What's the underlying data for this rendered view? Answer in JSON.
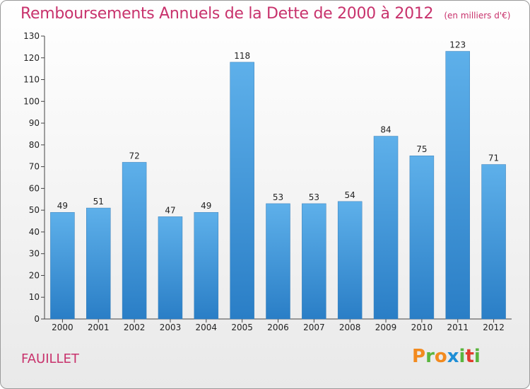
{
  "header": {
    "title": "Remboursements Annuels de la Dette de 2000 à 2012",
    "unit": "(en milliers d'€)"
  },
  "footer": {
    "commune": "FAUILLET",
    "logo": [
      "P",
      "r",
      "o",
      "x",
      "i",
      "t",
      "i"
    ]
  },
  "colors": {
    "title": "#c8326c",
    "bar": "#3a8fd6",
    "logo": [
      "#f28a1e",
      "#5ab53e",
      "#f28a1e",
      "#1e8ed6",
      "#5ab53e",
      "#e23b2c",
      "#5ab53e"
    ]
  },
  "chart_data": {
    "type": "bar",
    "categories": [
      "2000",
      "2001",
      "2002",
      "2003",
      "2004",
      "2005",
      "2006",
      "2007",
      "2008",
      "2009",
      "2010",
      "2011",
      "2012"
    ],
    "values": [
      49,
      51,
      72,
      47,
      49,
      118,
      53,
      53,
      54,
      84,
      75,
      123,
      71
    ],
    "ylim": [
      0,
      130
    ],
    "yticks": [
      0,
      10,
      20,
      30,
      40,
      50,
      60,
      70,
      80,
      90,
      100,
      110,
      120,
      130
    ],
    "grid": false
  }
}
